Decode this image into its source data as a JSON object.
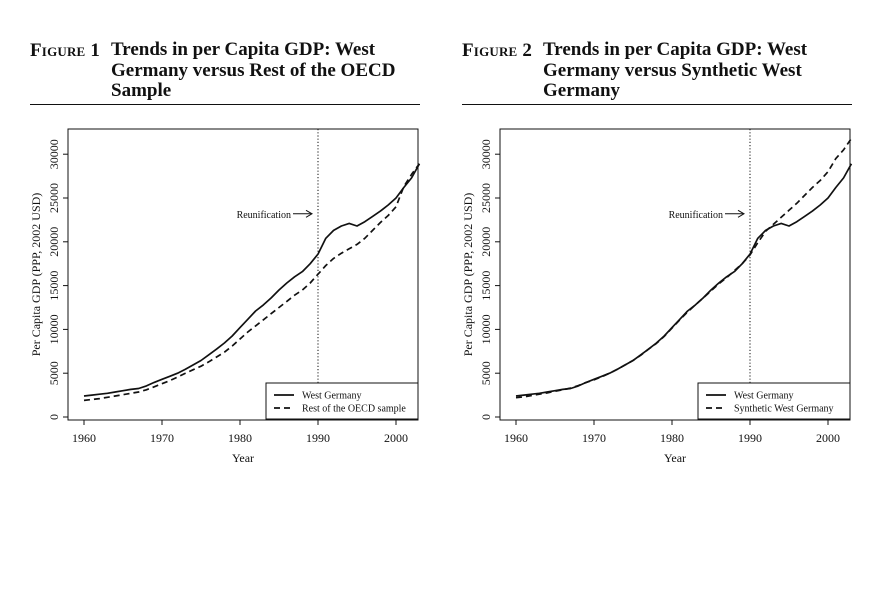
{
  "figures": [
    {
      "number_prefix": "Figure",
      "number": "1",
      "title": "Trends in per Capita GDP: West Germany versus Rest of the OECD Sample"
    },
    {
      "number_prefix": "Figure",
      "number": "2",
      "title": "Trends in per Capita GDP: West Germany versus Synthetic West Germany"
    }
  ],
  "chart_data": [
    {
      "type": "line",
      "title": "",
      "xlabel": "Year",
      "ylabel": "Per Capita GDP (PPP, 2002 USD)",
      "xlim": [
        1960,
        2003
      ],
      "ylim": [
        0,
        32000
      ],
      "x_ticks": [
        1960,
        1970,
        1980,
        1990,
        2000
      ],
      "y_ticks": [
        0,
        5000,
        10000,
        15000,
        20000,
        25000,
        30000
      ],
      "grid": false,
      "legend_position": "bottom-right",
      "vline": {
        "x": 1990,
        "style": "dotted"
      },
      "annotation": {
        "text": "Reunification",
        "x": 1990,
        "y": 23200
      },
      "x": [
        1960,
        1961,
        1962,
        1963,
        1964,
        1965,
        1966,
        1967,
        1968,
        1969,
        1970,
        1971,
        1972,
        1973,
        1974,
        1975,
        1976,
        1977,
        1978,
        1979,
        1980,
        1981,
        1982,
        1983,
        1984,
        1985,
        1986,
        1987,
        1988,
        1989,
        1990,
        1991,
        1992,
        1993,
        1994,
        1995,
        1996,
        1997,
        1998,
        1999,
        2000,
        2001,
        2002,
        2003
      ],
      "series": [
        {
          "name": "West Germany",
          "style": "solid",
          "values": [
            2400,
            2500,
            2600,
            2700,
            2850,
            3000,
            3150,
            3250,
            3550,
            3950,
            4300,
            4650,
            5000,
            5450,
            5950,
            6450,
            7100,
            7750,
            8450,
            9250,
            10200,
            11150,
            12100,
            12800,
            13600,
            14500,
            15300,
            16000,
            16600,
            17500,
            18600,
            20400,
            21300,
            21800,
            22100,
            21800,
            22300,
            22900,
            23500,
            24200,
            25000,
            26200,
            27300,
            28900
          ]
        },
        {
          "name": "Rest of the OECD sample",
          "style": "dashed",
          "values": [
            1900,
            2000,
            2100,
            2250,
            2400,
            2550,
            2700,
            2850,
            3100,
            3450,
            3800,
            4150,
            4550,
            5000,
            5400,
            5800,
            6300,
            6850,
            7400,
            8100,
            8900,
            9700,
            10400,
            11100,
            11800,
            12500,
            13200,
            13900,
            14500,
            15300,
            16300,
            17300,
            18100,
            18700,
            19200,
            19700,
            20400,
            21300,
            22200,
            23000,
            24000,
            26300,
            27700,
            28900
          ]
        }
      ]
    },
    {
      "type": "line",
      "title": "",
      "xlabel": "Year",
      "ylabel": "Per Capita GDP (PPP, 2002 USD)",
      "xlim": [
        1960,
        2003
      ],
      "ylim": [
        0,
        32000
      ],
      "x_ticks": [
        1960,
        1970,
        1980,
        1990,
        2000
      ],
      "y_ticks": [
        0,
        5000,
        10000,
        15000,
        20000,
        25000,
        30000
      ],
      "grid": false,
      "legend_position": "bottom-right",
      "vline": {
        "x": 1990,
        "style": "dotted"
      },
      "annotation": {
        "text": "Reunification",
        "x": 1990,
        "y": 23200
      },
      "x": [
        1960,
        1961,
        1962,
        1963,
        1964,
        1965,
        1966,
        1967,
        1968,
        1969,
        1970,
        1971,
        1972,
        1973,
        1974,
        1975,
        1976,
        1977,
        1978,
        1979,
        1980,
        1981,
        1982,
        1983,
        1984,
        1985,
        1986,
        1987,
        1988,
        1989,
        1990,
        1991,
        1992,
        1993,
        1994,
        1995,
        1996,
        1997,
        1998,
        1999,
        2000,
        2001,
        2002,
        2003
      ],
      "series": [
        {
          "name": "West Germany",
          "style": "solid",
          "values": [
            2400,
            2500,
            2600,
            2700,
            2850,
            3000,
            3150,
            3250,
            3550,
            3950,
            4300,
            4650,
            5000,
            5450,
            5950,
            6450,
            7100,
            7750,
            8450,
            9250,
            10200,
            11150,
            12100,
            12800,
            13600,
            14500,
            15300,
            16000,
            16600,
            17500,
            18600,
            20400,
            21300,
            21800,
            22100,
            21800,
            22300,
            22900,
            23500,
            24200,
            25000,
            26200,
            27300,
            28900
          ]
        },
        {
          "name": "Synthetic West Germany",
          "style": "dashed",
          "values": [
            2200,
            2300,
            2450,
            2600,
            2750,
            2950,
            3100,
            3300,
            3600,
            3950,
            4250,
            4600,
            5000,
            5450,
            5950,
            6450,
            7050,
            7750,
            8400,
            9200,
            10150,
            11100,
            12000,
            12800,
            13600,
            14400,
            15200,
            15900,
            16700,
            17500,
            18500,
            19900,
            21200,
            22000,
            22800,
            23600,
            24400,
            25300,
            26200,
            27000,
            28000,
            29500,
            30500,
            31800
          ]
        }
      ]
    }
  ]
}
